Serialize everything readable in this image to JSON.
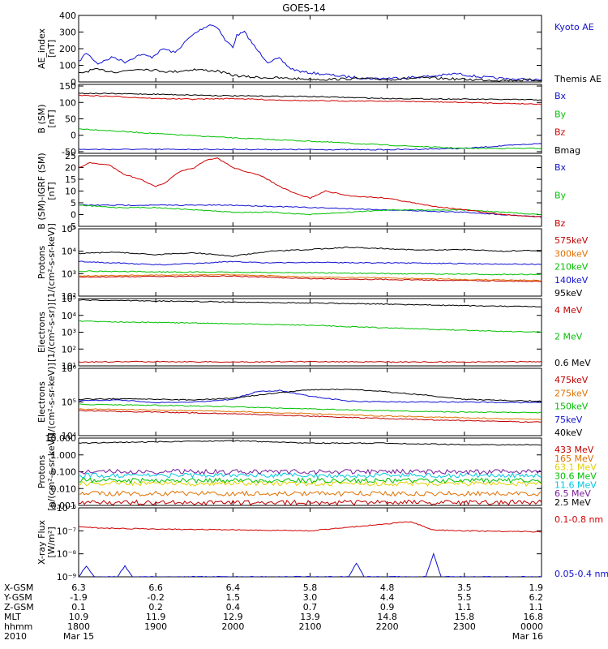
{
  "title": "GOES-14",
  "colors": {
    "black": "#000000",
    "blue": "#1010d0",
    "red": "#d00000",
    "green": "#00c000",
    "orange": "#e07000",
    "yellow": "#e0d000",
    "cyan": "#00c8e0",
    "purple": "#7a1a9a",
    "darkred": "#c00000"
  },
  "chart_data": [
    {
      "type": "line",
      "panel": "ae",
      "ylabel": [
        "AE_index",
        "[nT]"
      ],
      "ylim": [
        0,
        400
      ],
      "yticks": [
        "0",
        "100",
        "200",
        "300",
        "400"
      ],
      "x_hours": [
        0,
        1,
        2,
        3,
        4,
        5,
        6
      ],
      "series": [
        {
          "name": "Kyoto AE",
          "color": "blue",
          "x": [
            0,
            0.1,
            0.25,
            0.45,
            0.6,
            0.8,
            0.95,
            1.1,
            1.25,
            1.4,
            1.5,
            1.6,
            1.7,
            1.8,
            1.9,
            2.0,
            2.05,
            2.15,
            2.3,
            2.45,
            2.6,
            2.75,
            2.9,
            3.1,
            3.3,
            3.5,
            3.8,
            4.2,
            4.6,
            4.9,
            5.2,
            5.5,
            5.8,
            6.0
          ],
          "y": [
            120,
            175,
            110,
            150,
            120,
            165,
            150,
            200,
            175,
            250,
            290,
            320,
            345,
            330,
            250,
            210,
            280,
            300,
            200,
            120,
            140,
            80,
            60,
            50,
            40,
            30,
            20,
            25,
            35,
            50,
            30,
            20,
            15,
            10
          ]
        },
        {
          "name": "Themis AE",
          "color": "black",
          "x": [
            0,
            0.2,
            0.5,
            0.8,
            1.0,
            1.2,
            1.5,
            1.8,
            2.0,
            2.2,
            2.5,
            2.8,
            3.2,
            3.6,
            4.0,
            4.5,
            5.0,
            5.5,
            6.0
          ],
          "y": [
            50,
            75,
            60,
            80,
            70,
            60,
            75,
            65,
            40,
            30,
            25,
            20,
            15,
            20,
            15,
            25,
            15,
            10,
            12
          ]
        }
      ]
    },
    {
      "type": "line",
      "panel": "b_sm",
      "ylabel": [
        "B (SM)",
        "[nT]"
      ],
      "ylim": [
        -55,
        155
      ],
      "yticks": [
        "-50",
        "0",
        "50",
        "100",
        "150"
      ],
      "series": [
        {
          "name": "Bx",
          "color": "blue",
          "x": [
            0,
            2,
            4,
            5,
            5.5,
            6
          ],
          "y": [
            -43,
            -43,
            -44,
            -40,
            -32,
            -25
          ]
        },
        {
          "name": "By",
          "color": "green",
          "x": [
            0,
            1,
            2,
            3,
            4,
            5,
            6
          ],
          "y": [
            20,
            5,
            -8,
            -18,
            -30,
            -40,
            -40
          ]
        },
        {
          "name": "Bz",
          "color": "red",
          "x": [
            0,
            0.5,
            1,
            1.5,
            2,
            2.5,
            3,
            4,
            5,
            6
          ],
          "y": [
            122,
            118,
            112,
            110,
            112,
            108,
            105,
            104,
            100,
            95
          ]
        },
        {
          "name": "Bmag",
          "color": "black",
          "x": [
            0,
            1,
            2,
            3,
            4,
            5,
            6
          ],
          "y": [
            128,
            125,
            120,
            118,
            112,
            110,
            108
          ]
        }
      ]
    },
    {
      "type": "line",
      "panel": "b_igrf",
      "ylabel": [
        "B (SM)-IGRF (SM)",
        "[nT]"
      ],
      "ylim": [
        -5,
        25
      ],
      "yticks": [
        "-5",
        "0",
        "5",
        "10",
        "15",
        "20",
        "25"
      ],
      "series": [
        {
          "name": "Bx",
          "color": "blue",
          "x": [
            0,
            1,
            2,
            3,
            4,
            5,
            6
          ],
          "y": [
            4,
            4,
            4,
            3,
            2,
            1,
            -1
          ]
        },
        {
          "name": "By",
          "color": "green",
          "x": [
            0,
            0.5,
            1,
            1.5,
            2,
            2.5,
            3,
            3.5,
            4,
            5,
            6
          ],
          "y": [
            4,
            3,
            3,
            2,
            1,
            1,
            0,
            1,
            2,
            2,
            0
          ]
        },
        {
          "name": "Bz",
          "color": "red",
          "x": [
            0,
            0.15,
            0.4,
            0.6,
            0.8,
            1.0,
            1.1,
            1.3,
            1.5,
            1.65,
            1.8,
            2.0,
            2.2,
            2.4,
            2.6,
            2.8,
            3.0,
            3.2,
            3.5,
            4.0,
            4.5,
            5.0,
            5.5,
            6.0
          ],
          "y": [
            20,
            22,
            21,
            17,
            15,
            12,
            13,
            18,
            20,
            23,
            24,
            20,
            18,
            16,
            12,
            9,
            7,
            10,
            8,
            7,
            4,
            2,
            0,
            -1
          ]
        }
      ]
    },
    {
      "type": "line",
      "panel": "protons_mageds",
      "ylog": true,
      "ylabel": [
        "Protons",
        "[1/(cm²-s-sr-keV)]"
      ],
      "ylim": [
        100,
        100000
      ],
      "yticks": [
        "10²",
        "10³",
        "10⁴",
        "10⁵"
      ],
      "series": [
        {
          "name": "575keV",
          "color": "darkred",
          "x": [
            0,
            1,
            2,
            3,
            4,
            5,
            6
          ],
          "y": [
            700,
            750,
            780,
            600,
            550,
            500,
            450
          ]
        },
        {
          "name": "300keV",
          "color": "orange",
          "x": [
            0,
            1,
            2,
            3,
            4,
            5,
            6
          ],
          "y": [
            800,
            850,
            900,
            700,
            650,
            550,
            500
          ]
        },
        {
          "name": "210keV",
          "color": "green",
          "x": [
            0,
            1,
            2,
            3,
            4,
            5,
            6
          ],
          "y": [
            1300,
            1200,
            1150,
            1100,
            1000,
            950,
            900
          ]
        },
        {
          "name": "140keV",
          "color": "blue",
          "x": [
            0,
            0.5,
            1,
            1.5,
            2,
            2.5,
            3,
            4,
            5,
            6
          ],
          "y": [
            3500,
            3000,
            2500,
            2800,
            3500,
            3000,
            3200,
            3000,
            2800,
            2600
          ]
        },
        {
          "name": "95keV",
          "color": "black",
          "x": [
            0,
            0.5,
            1,
            1.5,
            2,
            2.5,
            3,
            3.5,
            4,
            4.5,
            5,
            5.5,
            6
          ],
          "y": [
            8000,
            9000,
            7000,
            8500,
            6000,
            10000,
            12000,
            15000,
            13000,
            11000,
            12000,
            10000,
            11000
          ]
        }
      ]
    },
    {
      "type": "line",
      "panel": "electrons_epead",
      "ylog": true,
      "ylabel": [
        "Electrons",
        "[1/(cm²-s-sr)]"
      ],
      "ylim": [
        10,
        100000
      ],
      "yticks": [
        "10¹",
        "10²",
        "10³",
        "10⁴",
        "10⁵"
      ],
      "series": [
        {
          "name": "4 MeV",
          "color": "darkred",
          "x": [
            0,
            1,
            2,
            3,
            4,
            5,
            6
          ],
          "y": [
            17,
            18,
            17,
            18,
            17,
            17,
            18
          ]
        },
        {
          "name": "2 MeV",
          "color": "green",
          "x": [
            0,
            1,
            2,
            3,
            4,
            5,
            6
          ],
          "y": [
            4500,
            3800,
            3200,
            2600,
            1800,
            1300,
            1000
          ]
        },
        {
          "name": "0.6 MeV",
          "color": "black",
          "x": [
            0,
            1,
            2,
            3,
            4,
            5,
            6
          ],
          "y": [
            80000,
            72000,
            62000,
            55000,
            46000,
            38000,
            32000
          ]
        }
      ]
    },
    {
      "type": "line",
      "panel": "electrons_mageds",
      "ylog": true,
      "ylabel": [
        "Electrons",
        "[1/(cm²-s-sr-keV)]"
      ],
      "ylim": [
        10000,
        1000000
      ],
      "yticks": [
        "10⁴",
        "10⁵",
        "10⁶"
      ],
      "series": [
        {
          "name": "475keV",
          "color": "darkred",
          "x": [
            0,
            1,
            2,
            3,
            4,
            5,
            6
          ],
          "y": [
            55000,
            50000,
            45000,
            38000,
            32000,
            28000,
            25000
          ]
        },
        {
          "name": "275keV",
          "color": "orange",
          "x": [
            0,
            1,
            2,
            3,
            4,
            5,
            6
          ],
          "y": [
            62000,
            58000,
            52000,
            45000,
            38000,
            34000,
            30000
          ]
        },
        {
          "name": "150keV",
          "color": "green",
          "x": [
            0,
            1,
            2,
            3,
            4,
            5,
            6
          ],
          "y": [
            85000,
            80000,
            72000,
            62000,
            55000,
            50000,
            48000
          ]
        },
        {
          "name": "75keV",
          "color": "blue",
          "x": [
            0,
            0.5,
            1,
            1.5,
            2,
            2.3,
            2.6,
            3,
            3.5,
            4,
            5,
            6
          ],
          "y": [
            110000,
            115000,
            95000,
            100000,
            120000,
            200000,
            220000,
            150000,
            105000,
            100000,
            100000,
            95000
          ]
        },
        {
          "name": "40keV",
          "color": "black",
          "x": [
            0,
            0.5,
            1,
            1.5,
            2,
            2.5,
            3,
            3.5,
            4,
            4.5,
            5,
            6
          ],
          "y": [
            120000,
            125000,
            120000,
            115000,
            130000,
            180000,
            230000,
            240000,
            200000,
            160000,
            120000,
            105000
          ]
        }
      ]
    },
    {
      "type": "line",
      "panel": "protons_epead",
      "ylog": true,
      "ylabel": [
        "Protons",
        "[p/(cm²-s-sr-keV)]"
      ],
      "ylim": [
        0.001,
        10
      ],
      "yticks": [
        "0.001",
        "0.010",
        "0.100",
        "1.000",
        "10.000"
      ],
      "series": [
        {
          "name": "433 MeV",
          "color": "darkred",
          "x": [
            0,
            6
          ],
          "y": [
            0.0015,
            0.0015
          ]
        },
        {
          "name": "165 MeV",
          "color": "orange",
          "x": [
            0,
            6
          ],
          "y": [
            0.005,
            0.005
          ]
        },
        {
          "name": "63.1 MeV",
          "color": "yellow",
          "x": [
            0,
            6
          ],
          "y": [
            0.02,
            0.02
          ]
        },
        {
          "name": "30.6 MeV",
          "color": "green",
          "x": [
            0,
            6
          ],
          "y": [
            0.03,
            0.03
          ]
        },
        {
          "name": "11.6 MeV",
          "color": "cyan",
          "x": [
            0,
            6
          ],
          "y": [
            0.06,
            0.06
          ]
        },
        {
          "name": "6.5 MeV",
          "color": "purple",
          "x": [
            0,
            6
          ],
          "y": [
            0.1,
            0.1
          ]
        },
        {
          "name": "2.5 MeV",
          "color": "black",
          "x": [
            0,
            1,
            2,
            3,
            4,
            5,
            6
          ],
          "y": [
            5,
            6,
            7,
            5,
            5,
            4,
            4
          ]
        }
      ]
    },
    {
      "type": "line",
      "panel": "xray",
      "ylog": true,
      "ylabel": [
        "X-ray Flux",
        "[W/m²]"
      ],
      "ylim": [
        1e-09,
        1e-06
      ],
      "yticks": [
        "10⁻⁹",
        "10⁻⁸",
        "10⁻⁷",
        "10⁻⁶"
      ],
      "series": [
        {
          "name": "0.1-0.8 nm",
          "color": "red",
          "x": [
            0,
            0.3,
            1,
            2,
            3,
            4.3,
            4.6,
            5,
            6
          ],
          "y": [
            1.5e-07,
            1.3e-07,
            1.2e-07,
            1.1e-07,
            1e-07,
            2.5e-07,
            1.1e-07,
            1e-07,
            9e-08
          ]
        },
        {
          "name": "0.05-0.4 nm",
          "color": "blue",
          "x": [
            0,
            0.1,
            0.2,
            0.5,
            0.6,
            0.7,
            1.0,
            1.5,
            2.0,
            3.0,
            3.5,
            3.6,
            3.7,
            4.0,
            4.5,
            4.6,
            4.7,
            5.0,
            5.5,
            6.0
          ],
          "y": [
            1e-09,
            3e-09,
            1e-09,
            1e-09,
            3e-09,
            1e-09,
            1e-09,
            1e-09,
            1e-09,
            1e-09,
            1e-09,
            4e-09,
            1e-09,
            1e-09,
            1e-09,
            1e-08,
            1e-09,
            1e-09,
            1e-09,
            1e-09
          ]
        }
      ]
    }
  ],
  "ephemeris": {
    "row_labels": [
      "X-GSM",
      "Y-GSM",
      "Z-GSM",
      "MLT",
      "hhmm",
      "2010"
    ],
    "columns": [
      [
        "6.3",
        "-1.9",
        "0.1",
        "10.9",
        "1800",
        "Mar 15"
      ],
      [
        "6.6",
        "-0.2",
        "0.2",
        "11.9",
        "1900",
        ""
      ],
      [
        "6.4",
        "1.5",
        "0.4",
        "12.9",
        "2000",
        ""
      ],
      [
        "5.8",
        "3.0",
        "0.7",
        "13.9",
        "2100",
        ""
      ],
      [
        "4.8",
        "4.4",
        "0.9",
        "14.8",
        "2200",
        ""
      ],
      [
        "3.5",
        "5.5",
        "1.1",
        "15.8",
        "2300",
        ""
      ],
      [
        "1.9",
        "6.2",
        "1.1",
        "16.8",
        "0000",
        "Mar 16"
      ]
    ]
  }
}
